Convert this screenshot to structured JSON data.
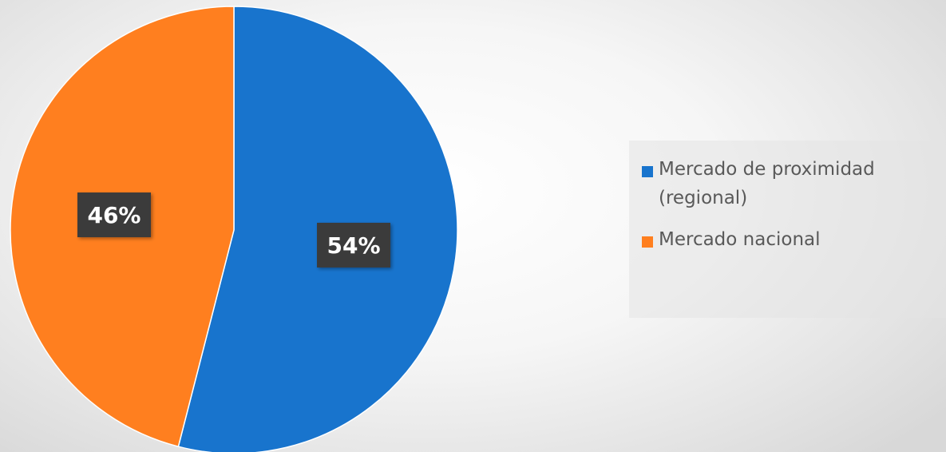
{
  "chart_data": {
    "type": "pie",
    "title": "",
    "categories": [
      "Mercado de proximidad\n(regional)",
      "Mercado nacional"
    ],
    "values": [
      54,
      46
    ],
    "labels": [
      "54%",
      "46%"
    ],
    "colors": [
      "#1874CD",
      "#FF7F1F"
    ],
    "legend_position": "right"
  }
}
